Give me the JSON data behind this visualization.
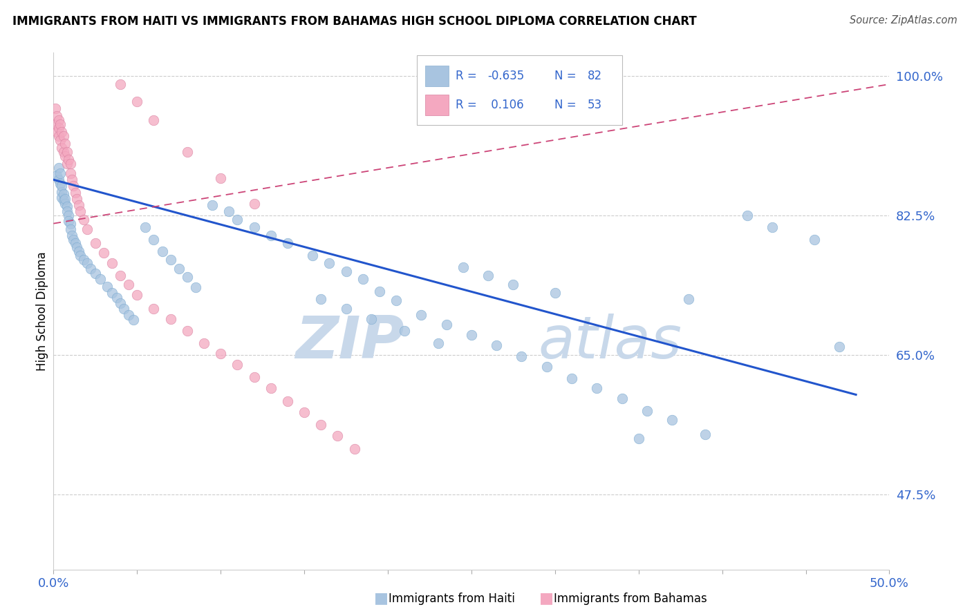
{
  "title": "IMMIGRANTS FROM HAITI VS IMMIGRANTS FROM BAHAMAS HIGH SCHOOL DIPLOMA CORRELATION CHART",
  "source": "Source: ZipAtlas.com",
  "ylabel": "High School Diploma",
  "xlim": [
    0.0,
    0.5
  ],
  "ylim": [
    0.38,
    1.03
  ],
  "ytick_positions": [
    0.475,
    0.65,
    0.825,
    1.0
  ],
  "ytick_labels": [
    "47.5%",
    "65.0%",
    "82.5%",
    "100.0%"
  ],
  "haiti_R": -0.635,
  "haiti_N": 82,
  "bahamas_R": 0.106,
  "bahamas_N": 53,
  "haiti_color": "#a8c4e0",
  "bahamas_color": "#f4a8c0",
  "haiti_line_color": "#2255cc",
  "bahamas_line_color": "#cc4477",
  "tick_label_color": "#3366cc",
  "watermark_zip": "ZIP",
  "watermark_atlas": "atlas",
  "watermark_color": "#c8d8ea",
  "grid_color": "#cccccc",
  "background_color": "#ffffff",
  "legend_color": "#3366cc",
  "haiti_x": [
    0.002,
    0.003,
    0.003,
    0.004,
    0.004,
    0.005,
    0.005,
    0.005,
    0.006,
    0.006,
    0.007,
    0.007,
    0.008,
    0.008,
    0.009,
    0.009,
    0.01,
    0.01,
    0.011,
    0.012,
    0.013,
    0.014,
    0.015,
    0.016,
    0.018,
    0.02,
    0.022,
    0.025,
    0.028,
    0.032,
    0.035,
    0.038,
    0.04,
    0.042,
    0.045,
    0.048,
    0.055,
    0.06,
    0.065,
    0.07,
    0.075,
    0.08,
    0.085,
    0.095,
    0.105,
    0.11,
    0.12,
    0.13,
    0.14,
    0.155,
    0.165,
    0.175,
    0.185,
    0.195,
    0.205,
    0.22,
    0.235,
    0.25,
    0.265,
    0.28,
    0.295,
    0.31,
    0.325,
    0.34,
    0.355,
    0.37,
    0.39,
    0.245,
    0.26,
    0.275,
    0.3,
    0.38,
    0.415,
    0.43,
    0.455,
    0.47,
    0.35,
    0.16,
    0.175,
    0.19,
    0.21,
    0.23
  ],
  "haiti_y": [
    0.875,
    0.885,
    0.87,
    0.865,
    0.878,
    0.855,
    0.862,
    0.848,
    0.852,
    0.844,
    0.84,
    0.846,
    0.836,
    0.83,
    0.825,
    0.818,
    0.815,
    0.808,
    0.8,
    0.795,
    0.79,
    0.785,
    0.78,
    0.775,
    0.77,
    0.765,
    0.758,
    0.752,
    0.745,
    0.736,
    0.728,
    0.722,
    0.715,
    0.708,
    0.7,
    0.694,
    0.81,
    0.795,
    0.78,
    0.77,
    0.758,
    0.748,
    0.735,
    0.838,
    0.83,
    0.82,
    0.81,
    0.8,
    0.79,
    0.775,
    0.765,
    0.755,
    0.745,
    0.73,
    0.718,
    0.7,
    0.688,
    0.675,
    0.662,
    0.648,
    0.635,
    0.62,
    0.608,
    0.595,
    0.58,
    0.568,
    0.55,
    0.76,
    0.75,
    0.738,
    0.728,
    0.72,
    0.825,
    0.81,
    0.795,
    0.66,
    0.545,
    0.72,
    0.708,
    0.695,
    0.68,
    0.665
  ],
  "bahamas_x": [
    0.001,
    0.001,
    0.002,
    0.002,
    0.003,
    0.003,
    0.003,
    0.004,
    0.004,
    0.005,
    0.005,
    0.006,
    0.006,
    0.007,
    0.007,
    0.008,
    0.008,
    0.009,
    0.01,
    0.01,
    0.011,
    0.012,
    0.013,
    0.014,
    0.015,
    0.016,
    0.018,
    0.02,
    0.025,
    0.03,
    0.035,
    0.04,
    0.045,
    0.05,
    0.06,
    0.07,
    0.08,
    0.09,
    0.1,
    0.11,
    0.12,
    0.13,
    0.14,
    0.15,
    0.16,
    0.17,
    0.18,
    0.04,
    0.05,
    0.06,
    0.08,
    0.1,
    0.12
  ],
  "bahamas_y": [
    0.96,
    0.94,
    0.95,
    0.93,
    0.945,
    0.935,
    0.925,
    0.94,
    0.92,
    0.93,
    0.91,
    0.925,
    0.905,
    0.915,
    0.9,
    0.905,
    0.89,
    0.895,
    0.89,
    0.878,
    0.87,
    0.862,
    0.854,
    0.846,
    0.838,
    0.83,
    0.82,
    0.808,
    0.79,
    0.778,
    0.765,
    0.75,
    0.738,
    0.725,
    0.708,
    0.695,
    0.68,
    0.665,
    0.652,
    0.638,
    0.622,
    0.608,
    0.592,
    0.578,
    0.562,
    0.548,
    0.532,
    0.99,
    0.968,
    0.945,
    0.905,
    0.872,
    0.84
  ],
  "haiti_line_x": [
    0.0,
    0.48
  ],
  "haiti_line_y": [
    0.87,
    0.6
  ],
  "bahamas_line_x": [
    0.0,
    0.5
  ],
  "bahamas_line_y": [
    0.815,
    0.99
  ]
}
